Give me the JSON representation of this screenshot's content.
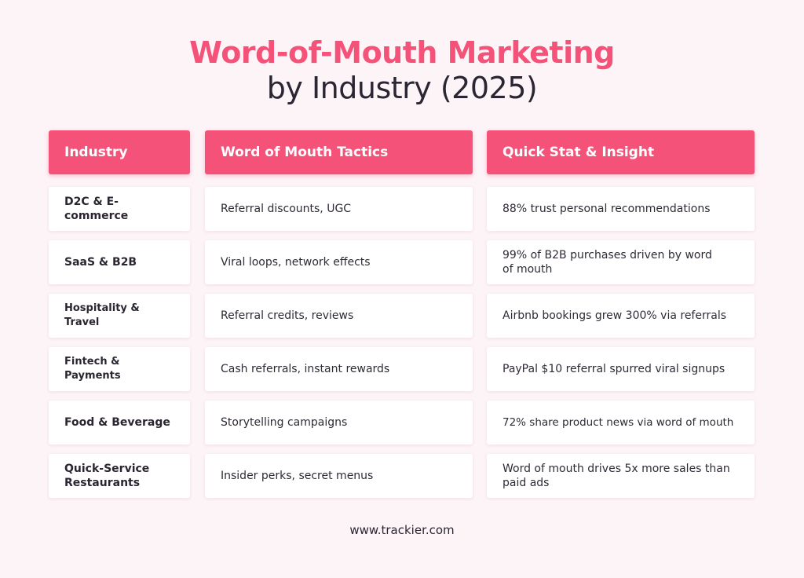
{
  "title": {
    "main": "Word-of-Mouth Marketing",
    "sub": "by Industry (2025)"
  },
  "headers": {
    "industry": "Industry",
    "tactics": "Word of Mouth Tactics",
    "stat": "Quick Stat & Insight"
  },
  "rows": [
    {
      "industry": "D2C & E-commerce",
      "tactics": "Referral discounts, UGC",
      "stat": "88% trust personal recommendations"
    },
    {
      "industry": "SaaS & B2B",
      "tactics": "Viral loops, network effects",
      "stat": "99% of B2B purchases driven by word of mouth"
    },
    {
      "industry": "Hospitality & Travel",
      "tactics": "Referral credits, reviews",
      "stat": "Airbnb bookings grew 300% via referrals"
    },
    {
      "industry": "Fintech & Payments",
      "tactics": "Cash referrals, instant rewards",
      "stat": "PayPal $10 referral spurred viral signups"
    },
    {
      "industry": "Food & Beverage",
      "tactics": "Storytelling campaigns",
      "stat": "72% share product news via word of mouth"
    },
    {
      "industry": "Quick-Service Restaurants",
      "tactics": "Insider perks, secret menus",
      "stat": "Word of mouth drives 5x more sales than paid ads"
    }
  ],
  "footer": "www.trackier.com",
  "colors": {
    "accent": "#f5527a",
    "background": "#fdf4f8",
    "text": "#2b2633"
  }
}
